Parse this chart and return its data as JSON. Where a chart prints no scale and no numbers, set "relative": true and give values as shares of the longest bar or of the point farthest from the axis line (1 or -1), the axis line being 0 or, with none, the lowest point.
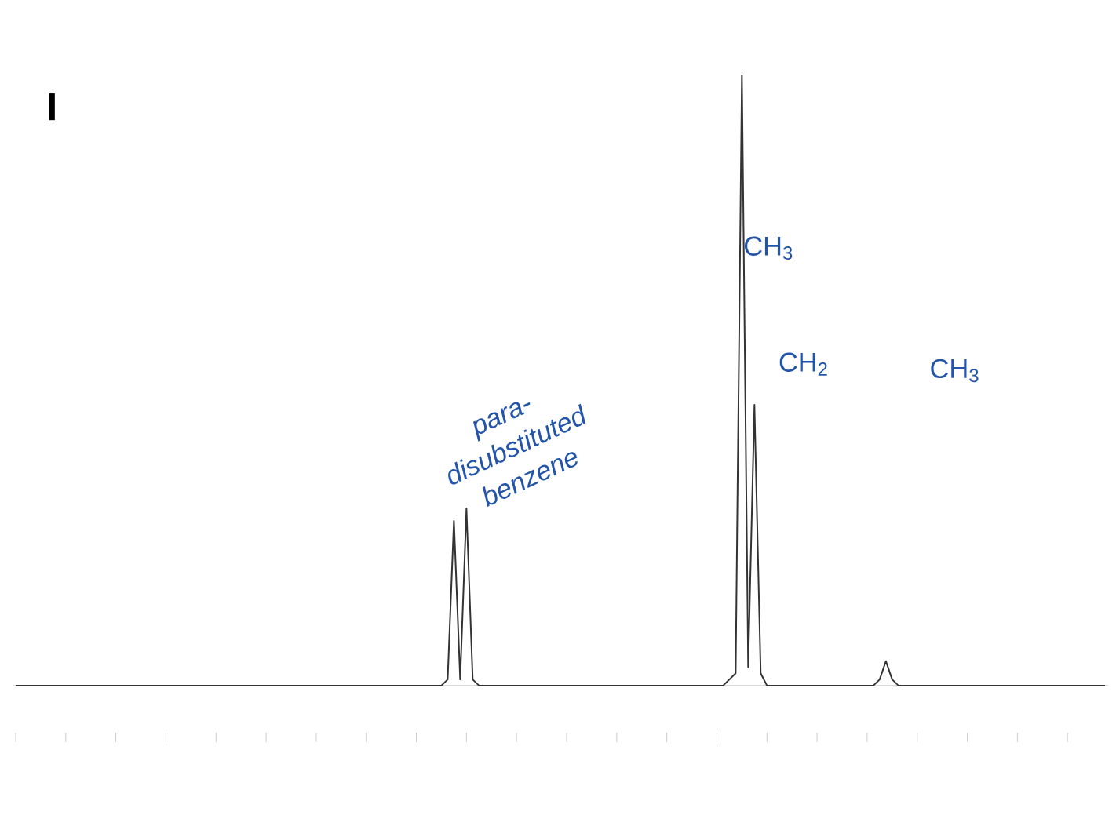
{
  "chart_data": {
    "type": "line",
    "relative": true,
    "color": "#333333",
    "categories": [
      null,
      null,
      null,
      null,
      null,
      null,
      null,
      null,
      null,
      null,
      null,
      null,
      null,
      null,
      null,
      null,
      null,
      null,
      null,
      null,
      null,
      null,
      null,
      null,
      null,
      null,
      null,
      null,
      null,
      null,
      null,
      null,
      null,
      null,
      null,
      null,
      null,
      null,
      null,
      null,
      null,
      null,
      null,
      null,
      null,
      null,
      null,
      null,
      null,
      null,
      null,
      null,
      null,
      null,
      null,
      null,
      null,
      null,
      null,
      null,
      null,
      null,
      null,
      null,
      null,
      null,
      null,
      null,
      null,
      null,
      null,
      null,
      null,
      null,
      null,
      null,
      null,
      null,
      null,
      null,
      null,
      null,
      null,
      null,
      null,
      null,
      null,
      null,
      null,
      null,
      null,
      null,
      null,
      null,
      null,
      null,
      null,
      null,
      null,
      null,
      null,
      null,
      null,
      null,
      null,
      null,
      null,
      null,
      null,
      null,
      null,
      null,
      null,
      null,
      null,
      null,
      null,
      null,
      null,
      null,
      null,
      null,
      null,
      null,
      null,
      null,
      null,
      null,
      null,
      null,
      null,
      null,
      null,
      null,
      null,
      null,
      null,
      null,
      null,
      null,
      null,
      null,
      null,
      null,
      null,
      null,
      null,
      null,
      null,
      null,
      null,
      null,
      null,
      null,
      null,
      null,
      null,
      null,
      null,
      null,
      null,
      null,
      null,
      null,
      null,
      null,
      null,
      null,
      null,
      null,
      null,
      null,
      null,
      null,
      null
    ],
    "values": [
      0,
      0,
      0,
      0,
      0,
      0,
      0,
      0,
      0,
      0,
      0,
      0,
      0,
      0,
      0,
      0,
      0,
      0,
      0,
      0,
      0,
      0,
      0,
      0,
      0,
      0,
      0,
      0,
      0,
      0,
      0,
      0,
      0,
      0,
      0,
      0,
      0,
      0,
      0,
      0,
      0,
      0,
      0,
      0,
      0,
      0,
      0,
      0,
      0,
      0,
      0,
      0,
      0,
      0,
      0,
      0,
      0,
      0,
      0,
      0,
      0,
      0,
      0,
      0,
      0,
      0,
      0,
      0,
      0,
      0.01,
      0.27,
      0.01,
      0.29,
      0.01,
      0,
      0,
      0,
      0,
      0,
      0,
      0,
      0,
      0,
      0,
      0,
      0,
      0,
      0,
      0,
      0,
      0,
      0,
      0,
      0,
      0,
      0,
      0,
      0,
      0,
      0,
      0,
      0,
      0,
      0,
      0,
      0,
      0,
      0,
      0,
      0,
      0,
      0,
      0,
      0,
      0.01,
      0.02,
      1.0,
      0.03,
      0.46,
      0.02,
      0,
      0,
      0,
      0,
      0,
      0,
      0,
      0,
      0,
      0,
      0,
      0,
      0,
      0,
      0,
      0,
      0,
      0,
      0.01,
      0.04,
      0.01,
      0,
      0,
      0,
      0,
      0,
      0,
      0,
      0,
      0,
      0,
      0,
      0,
      0,
      0,
      0,
      0,
      0,
      0,
      0,
      0,
      0,
      0,
      0,
      0,
      0,
      0,
      0,
      0,
      0,
      0,
      0,
      0,
      0,
      0
    ],
    "annotations": [
      "I",
      "para-disubstituted benzene",
      "CH$_{3}$",
      "CH$_{2}$",
      "CH$_{3}$"
    ]
  }
}
